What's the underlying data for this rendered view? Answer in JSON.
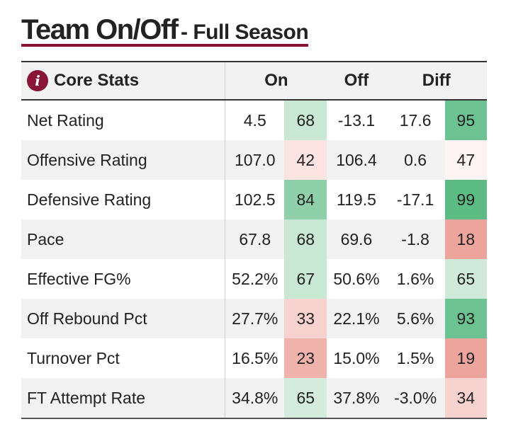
{
  "header": {
    "title": "Team On/Off",
    "subtitle": "- Full Season"
  },
  "table": {
    "section_label": "Core Stats",
    "columns": {
      "on": "On",
      "off": "Off",
      "diff": "Diff"
    },
    "colors": {
      "high": "#5fbd85",
      "mid_high": "#8fd0aa",
      "light_green": "#c8e8d4",
      "neutral": "#fbeeee",
      "light_red": "#f4c7c3",
      "red": "#eda49c"
    },
    "rows": [
      {
        "label": "Net Rating",
        "on": "4.5",
        "on_pct": "68",
        "off": "-13.1",
        "diff": "17.6",
        "diff_pct": "95",
        "on_color": "#c8e8d4",
        "diff_color": "#6cc290"
      },
      {
        "label": "Offensive Rating",
        "on": "107.0",
        "on_pct": "42",
        "off": "106.4",
        "diff": "0.6",
        "diff_pct": "47",
        "on_color": "#fbe4e2",
        "diff_color": "#fdf3f2"
      },
      {
        "label": "Defensive Rating",
        "on": "102.5",
        "on_pct": "84",
        "off": "119.5",
        "diff": "-17.1",
        "diff_pct": "99",
        "on_color": "#8fd0aa",
        "diff_color": "#5dbc84"
      },
      {
        "label": "Pace",
        "on": "67.8",
        "on_pct": "68",
        "off": "69.6",
        "diff": "-1.8",
        "diff_pct": "18",
        "on_color": "#c8e8d4",
        "diff_color": "#eda49c"
      },
      {
        "label": "Effective FG%",
        "on": "52.2%",
        "on_pct": "67",
        "off": "50.6%",
        "diff": "1.6%",
        "diff_pct": "65",
        "on_color": "#c8e8d4",
        "diff_color": "#cfead9"
      },
      {
        "label": "Off Rebound Pct",
        "on": "27.7%",
        "on_pct": "33",
        "off": "22.1%",
        "diff": "5.6%",
        "diff_pct": "93",
        "on_color": "#f7d2cf",
        "diff_color": "#6cc290"
      },
      {
        "label": "Turnover Pct",
        "on": "16.5%",
        "on_pct": "23",
        "off": "15.0%",
        "diff": "1.5%",
        "diff_pct": "19",
        "on_color": "#f0b3ac",
        "diff_color": "#eda49c"
      },
      {
        "label": "FT Attempt Rate",
        "on": "34.8%",
        "on_pct": "65",
        "off": "37.8%",
        "diff": "-3.0%",
        "diff_pct": "34",
        "on_color": "#d3ecdc",
        "diff_color": "#f7d2cf"
      }
    ]
  }
}
